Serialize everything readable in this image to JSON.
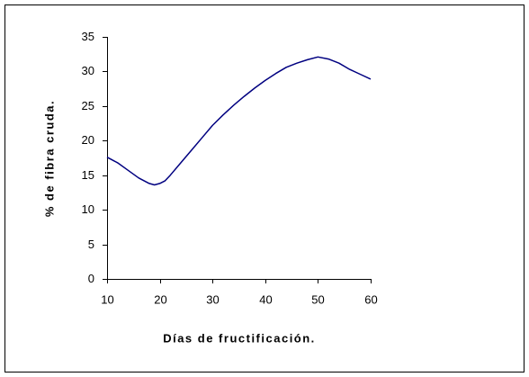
{
  "chart_data": {
    "type": "line",
    "x_label": "Días de fructificación.",
    "y_label": "% de fibra cruda.",
    "series": [
      {
        "name": "% de fibra cruda",
        "color": "#000080",
        "x": [
          10,
          12,
          14,
          16,
          18,
          19,
          20,
          21,
          22,
          24,
          26,
          28,
          30,
          32,
          34,
          36,
          38,
          40,
          42,
          44,
          46,
          48,
          50,
          52,
          54,
          56,
          58,
          60
        ],
        "values": [
          17.6,
          16.8,
          15.7,
          14.6,
          13.8,
          13.6,
          13.8,
          14.2,
          15.0,
          16.8,
          18.6,
          20.4,
          22.2,
          23.7,
          25.1,
          26.4,
          27.6,
          28.7,
          29.7,
          30.6,
          31.2,
          31.7,
          32.1,
          31.8,
          31.2,
          30.3,
          29.6,
          28.9
        ]
      }
    ],
    "xlim": [
      10,
      60
    ],
    "xticks": [
      10,
      20,
      30,
      40,
      50,
      60
    ],
    "ylim": [
      0,
      35
    ],
    "yticks": [
      0,
      5,
      10,
      15,
      20,
      25,
      30,
      35
    ],
    "grid": false
  }
}
